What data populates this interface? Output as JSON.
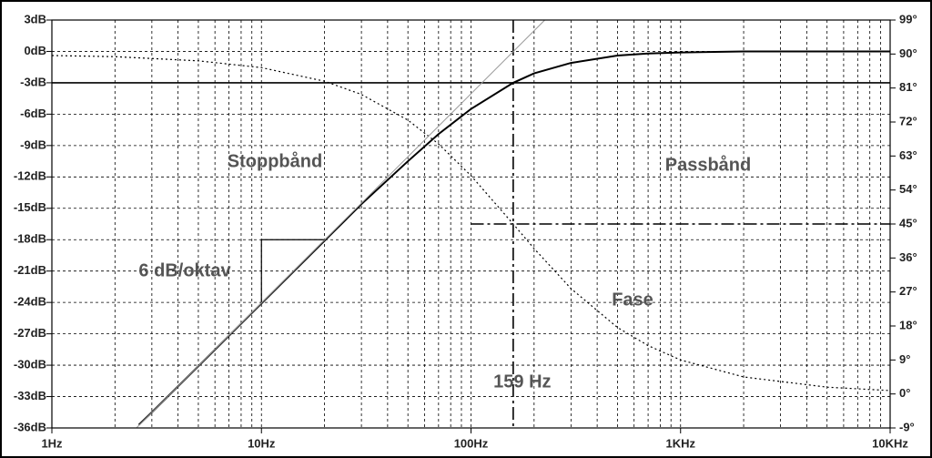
{
  "chart_data": {
    "type": "line",
    "xscale": "log",
    "grid": true,
    "minor_grid": true,
    "xlim": [
      1,
      10000
    ],
    "xticks": [
      {
        "value": 1,
        "label": "1Hz"
      },
      {
        "value": 10,
        "label": "10Hz"
      },
      {
        "value": 100,
        "label": "100Hz"
      },
      {
        "value": 1000,
        "label": "1KHz"
      },
      {
        "value": 10000,
        "label": "10KHz"
      }
    ],
    "ylim": [
      -36,
      3
    ],
    "yticks": [
      {
        "value": 3,
        "label": "3dB"
      },
      {
        "value": 0,
        "label": "0dB"
      },
      {
        "value": -3,
        "label": "-3dB"
      },
      {
        "value": -6,
        "label": "-6dB"
      },
      {
        "value": -9,
        "label": "-9dB"
      },
      {
        "value": -12,
        "label": "-12dB"
      },
      {
        "value": -15,
        "label": "-15dB"
      },
      {
        "value": -18,
        "label": "-18dB"
      },
      {
        "value": -21,
        "label": "-21dB"
      },
      {
        "value": -24,
        "label": "-24dB"
      },
      {
        "value": -27,
        "label": "-27dB"
      },
      {
        "value": -30,
        "label": "-30dB"
      },
      {
        "value": -33,
        "label": "-33dB"
      },
      {
        "value": -36,
        "label": "-36dB"
      }
    ],
    "y2lim": [
      -9,
      99
    ],
    "y2ticks": [
      {
        "value": 99,
        "label": "99°"
      },
      {
        "value": 90,
        "label": "90°"
      },
      {
        "value": 81,
        "label": "81°"
      },
      {
        "value": 72,
        "label": "72°"
      },
      {
        "value": 63,
        "label": "63°"
      },
      {
        "value": 54,
        "label": "54°"
      },
      {
        "value": 45,
        "label": "45°"
      },
      {
        "value": 36,
        "label": "36°"
      },
      {
        "value": 27,
        "label": "27°"
      },
      {
        "value": 18,
        "label": "18°"
      },
      {
        "value": 9,
        "label": "9°"
      },
      {
        "value": 0,
        "label": "0°"
      },
      {
        "value": -9,
        "label": "-9°"
      }
    ],
    "series": [
      {
        "color": "#000000",
        "style": "solid",
        "width": 2,
        "x": [
          2.6,
          3,
          5,
          10,
          20,
          30,
          50,
          70,
          100,
          159,
          200,
          300,
          500,
          700,
          1000,
          2000,
          5000,
          10000
        ],
        "values": [
          -35.7,
          -34.5,
          -30.1,
          -24.1,
          -18.1,
          -14.6,
          -10.5,
          -7.9,
          -5.5,
          -3.0,
          -2.1,
          -1.1,
          -0.4,
          -0.2,
          -0.1,
          0,
          0,
          0
        ]
      },
      {
        "color": "#000000",
        "style": "dotted",
        "width": 1.2,
        "axis": "y2",
        "x": [
          1,
          2,
          5,
          10,
          20,
          30,
          50,
          70,
          100,
          159,
          200,
          300,
          500,
          700,
          1000,
          2000,
          5000,
          10000
        ],
        "values": [
          89.6,
          89.3,
          88.2,
          86.4,
          82.8,
          79.3,
          72.5,
          66.2,
          57.8,
          45,
          38.5,
          27.9,
          17.6,
          12.8,
          9.0,
          4.5,
          1.8,
          0.9
        ]
      },
      {
        "color": "#999999",
        "style": "solid",
        "width": 1,
        "x": [
          2.53,
          225
        ],
        "values": [
          -36,
          3
        ]
      }
    ],
    "hlines": [
      {
        "value": -3
      },
      {
        "value": 45,
        "axis": "y2",
        "from": 100,
        "style": "dashdot"
      }
    ],
    "vlines": [
      {
        "value": 159,
        "label": "159 Hz",
        "style": "dashdot"
      }
    ],
    "slope_triangle": {
      "x": [
        10,
        10,
        20
      ],
      "values": [
        -24,
        -18,
        -18
      ]
    },
    "annotations": [
      "Stoppbånd",
      "Passbånd",
      "6 dB/oktav",
      "Fase"
    ]
  }
}
